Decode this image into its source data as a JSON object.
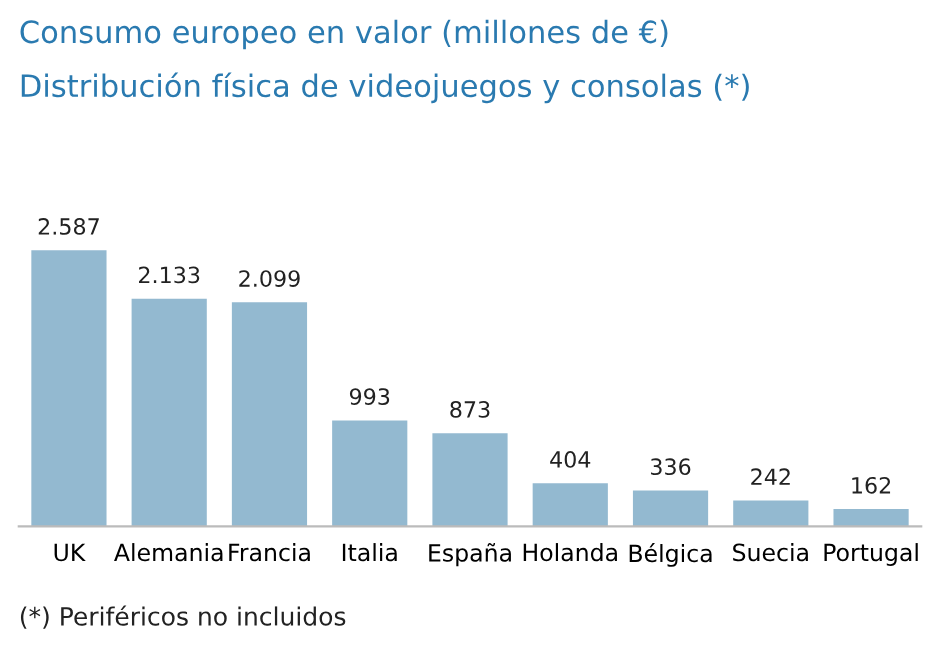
{
  "chart_data": {
    "type": "bar",
    "title": "Consumo europeo en valor (millones de €)",
    "subtitle": "Distribución física de videojuegos y consolas (*)",
    "categories": [
      "UK",
      "Alemania",
      "Francia",
      "Italia",
      "España",
      "Holanda",
      "Bélgica",
      "Suecia",
      "Portugal"
    ],
    "values": [
      2587,
      2133,
      2099,
      993,
      873,
      404,
      336,
      242,
      162
    ],
    "value_labels": [
      "2.587",
      "2.133",
      "2.099",
      "993",
      "873",
      "404",
      "336",
      "242",
      "162"
    ],
    "color": "#93b9d0",
    "annotations": [
      "(*) Periféricos no incluidos"
    ],
    "grid": false,
    "legend": false
  }
}
